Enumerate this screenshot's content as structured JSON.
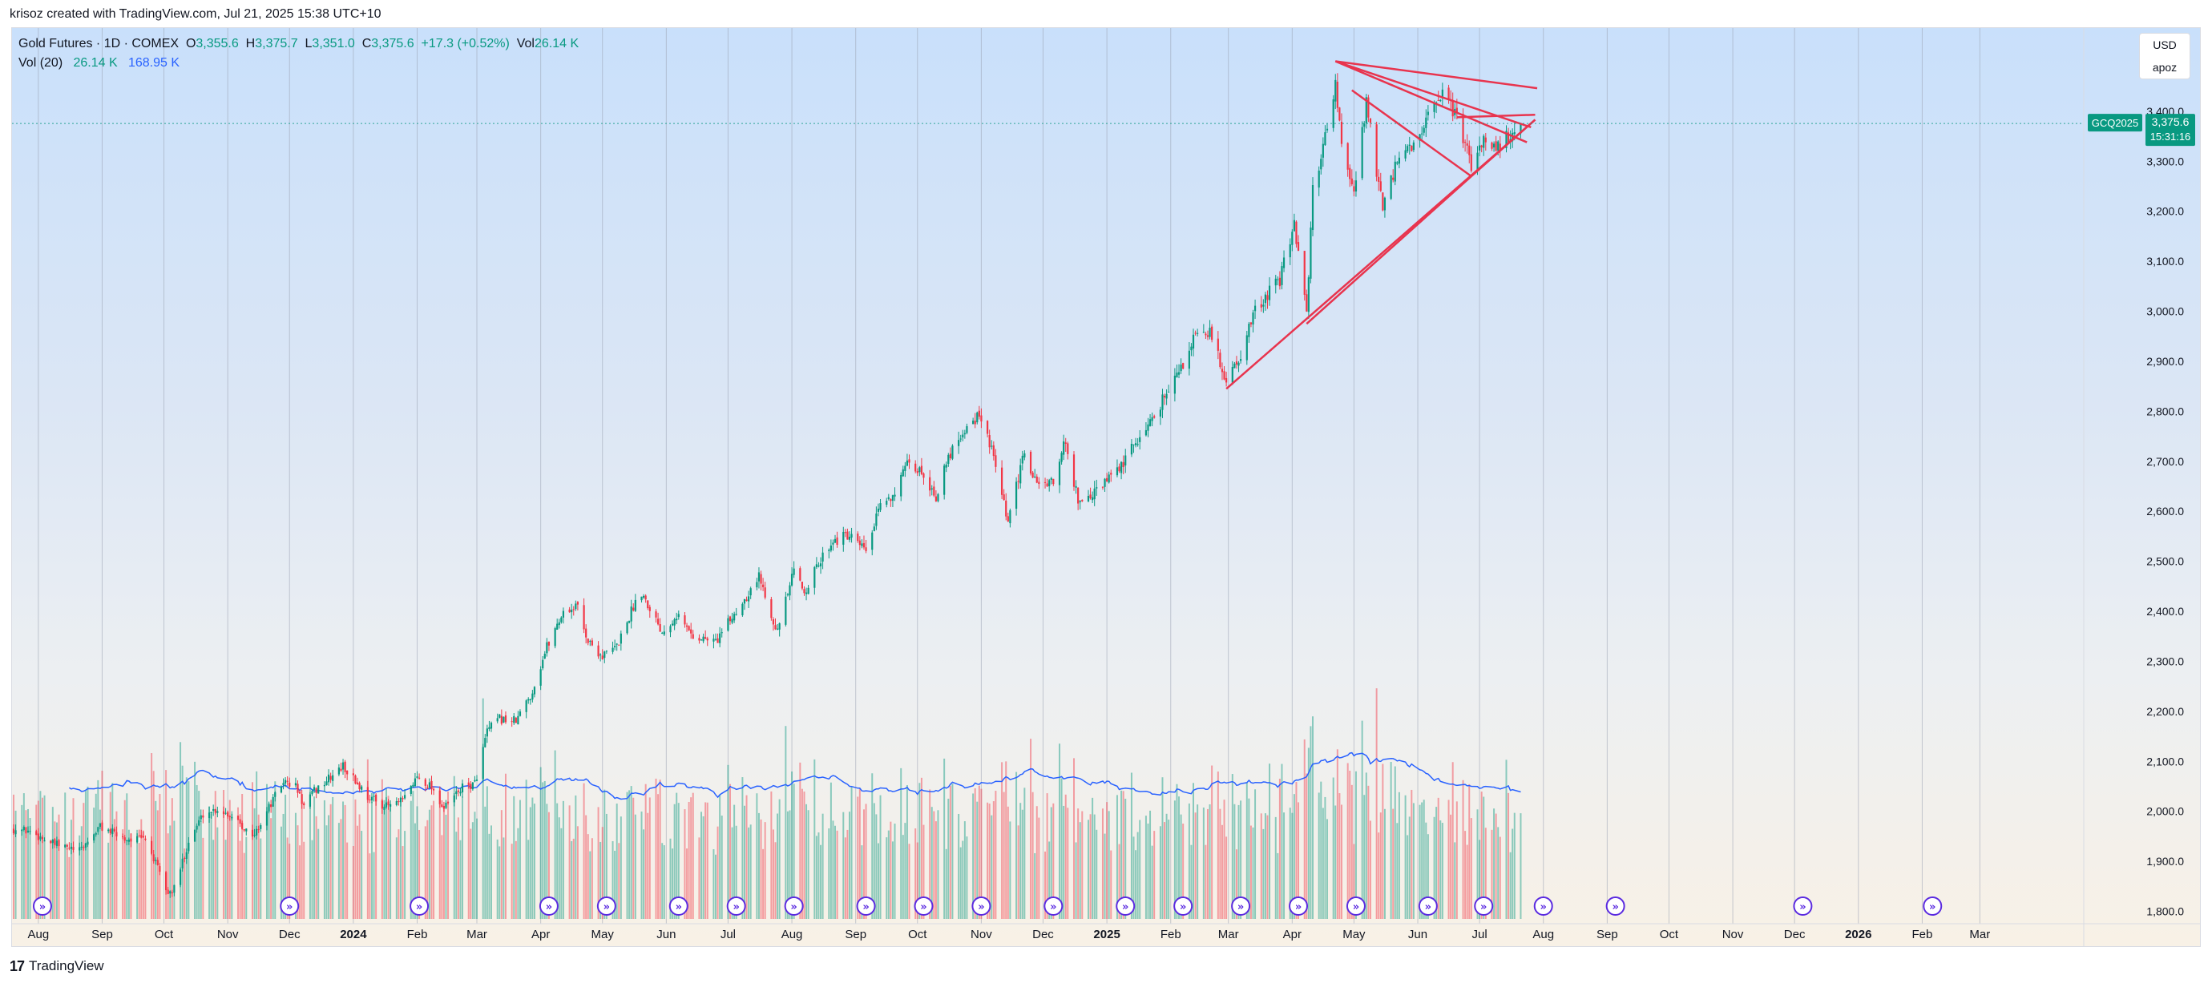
{
  "header": {
    "attribution": "krisoz created with TradingView.com, Jul 21, 2025 15:38 UTC+10"
  },
  "legend": {
    "symbol": "Gold Futures · 1D · COMEX",
    "o_label": "O",
    "o_value": "3,355.6",
    "h_label": "H",
    "h_value": "3,375.7",
    "l_label": "L",
    "l_value": "3,351.0",
    "c_label": "C",
    "c_value": "3,375.6",
    "change": "+17.3 (+0.52%)",
    "vol_label": "Vol",
    "vol_value": "26.14 K",
    "vol_ma_label": "Vol (20)",
    "vol_ma_value1": "26.14 K",
    "vol_ma_value2": "168.95 K"
  },
  "currency_box": {
    "currency": "USD",
    "user": "apoz"
  },
  "price_tag": {
    "ticker": "GCQ2025",
    "price": "3,375.6",
    "countdown": "15:31:16"
  },
  "footer": {
    "brand": "TradingView",
    "logo": "17"
  },
  "colors": {
    "up": "#089981",
    "down": "#f23645",
    "trendline": "#e8344e",
    "volume_ma": "#2962ff",
    "tag": "#089981"
  },
  "chart_data": {
    "type": "candlestick",
    "title": "Gold Futures · 1D · COMEX",
    "price_axis": {
      "ticks": [
        1800,
        1900,
        2000,
        2100,
        2200,
        2300,
        2400,
        2500,
        2600,
        2700,
        2800,
        2900,
        3000,
        3100,
        3200,
        3300,
        3400
      ],
      "tick_labels": [
        "1,800.0",
        "1,900.0",
        "2,000.0",
        "2,100.0",
        "2,200.0",
        "2,300.0",
        "2,400.0",
        "2,500.0",
        "2,600.0",
        "2,700.0",
        "2,800.0",
        "2,900.0",
        "3,000.0",
        "3,100.0",
        "3,200.0",
        "3,300.0",
        "3,400.0"
      ],
      "range": [
        1740,
        3560
      ]
    },
    "time_axis": {
      "labels": [
        "Aug",
        "Sep",
        "Oct",
        "Nov",
        "Dec",
        "2024",
        "Feb",
        "Mar",
        "Apr",
        "May",
        "Jun",
        "Jul",
        "Aug",
        "Sep",
        "Oct",
        "Nov",
        "Dec",
        "2025",
        "Feb",
        "Mar",
        "Apr",
        "May",
        "Jun",
        "Jul",
        "Aug",
        "Sep",
        "Oct",
        "Nov",
        "Dec",
        "2026",
        "Feb",
        "Mar"
      ],
      "bold_labels": [
        "2024",
        "2025",
        "2026"
      ],
      "range": [
        "2023-07-20",
        "2026-03-25"
      ]
    },
    "close_path": [
      [
        "2023-07-20",
        1965
      ],
      [
        "2023-07-28",
        1960
      ],
      [
        "2023-08-08",
        1935
      ],
      [
        "2023-08-21",
        1920
      ],
      [
        "2023-08-31",
        1970
      ],
      [
        "2023-09-12",
        1945
      ],
      [
        "2023-09-22",
        1945
      ],
      [
        "2023-10-03",
        1835
      ],
      [
        "2023-10-06",
        1845
      ],
      [
        "2023-10-13",
        1940
      ],
      [
        "2023-10-20",
        1995
      ],
      [
        "2023-10-27",
        2005
      ],
      [
        "2023-11-06",
        1985
      ],
      [
        "2023-11-13",
        1945
      ],
      [
        "2023-11-20",
        2000
      ],
      [
        "2023-11-28",
        2060
      ],
      [
        "2023-12-04",
        2050
      ],
      [
        "2023-12-08",
        2010
      ],
      [
        "2023-12-13",
        2040
      ],
      [
        "2023-12-27",
        2090
      ],
      [
        "2024-01-08",
        2030
      ],
      [
        "2024-01-17",
        2010
      ],
      [
        "2024-01-25",
        2020
      ],
      [
        "2024-02-01",
        2070
      ],
      [
        "2024-02-08",
        2050
      ],
      [
        "2024-02-14",
        2005
      ],
      [
        "2024-02-22",
        2045
      ],
      [
        "2024-02-29",
        2055
      ],
      [
        "2024-03-06",
        2160
      ],
      [
        "2024-03-12",
        2185
      ],
      [
        "2024-03-20",
        2180
      ],
      [
        "2024-03-28",
        2240
      ],
      [
        "2024-04-04",
        2330
      ],
      [
        "2024-04-12",
        2400
      ],
      [
        "2024-04-19",
        2410
      ],
      [
        "2024-04-24",
        2340
      ],
      [
        "2024-05-01",
        2310
      ],
      [
        "2024-05-08",
        2330
      ],
      [
        "2024-05-17",
        2420
      ],
      [
        "2024-05-20",
        2440
      ],
      [
        "2024-05-30",
        2360
      ],
      [
        "2024-06-06",
        2395
      ],
      [
        "2024-06-14",
        2350
      ],
      [
        "2024-06-25",
        2340
      ],
      [
        "2024-07-05",
        2400
      ],
      [
        "2024-07-16",
        2470
      ],
      [
        "2024-07-25",
        2360
      ],
      [
        "2024-08-02",
        2480
      ],
      [
        "2024-08-07",
        2440
      ],
      [
        "2024-08-20",
        2540
      ],
      [
        "2024-08-28",
        2550
      ],
      [
        "2024-09-06",
        2520
      ],
      [
        "2024-09-13",
        2610
      ],
      [
        "2024-09-20",
        2640
      ],
      [
        "2024-09-26",
        2690
      ],
      [
        "2024-10-03",
        2680
      ],
      [
        "2024-10-10",
        2630
      ],
      [
        "2024-10-18",
        2730
      ],
      [
        "2024-10-23",
        2760
      ],
      [
        "2024-10-30",
        2790
      ],
      [
        "2024-11-05",
        2740
      ],
      [
        "2024-11-14",
        2575
      ],
      [
        "2024-11-22",
        2720
      ],
      [
        "2024-11-27",
        2660
      ],
      [
        "2024-12-06",
        2655
      ],
      [
        "2024-12-11",
        2740
      ],
      [
        "2024-12-19",
        2610
      ],
      [
        "2024-12-27",
        2640
      ],
      [
        "2025-01-08",
        2690
      ],
      [
        "2025-01-17",
        2750
      ],
      [
        "2025-01-24",
        2790
      ],
      [
        "2025-01-31",
        2850
      ],
      [
        "2025-02-07",
        2890
      ],
      [
        "2025-02-11",
        2940
      ],
      [
        "2025-02-20",
        2960
      ],
      [
        "2025-02-28",
        2860
      ],
      [
        "2025-03-07",
        2915
      ],
      [
        "2025-03-14",
        3000
      ],
      [
        "2025-03-21",
        3040
      ],
      [
        "2025-03-26",
        3060
      ],
      [
        "2025-04-02",
        3180
      ],
      [
        "2025-04-08",
        2990
      ],
      [
        "2025-04-11",
        3240
      ],
      [
        "2025-04-17",
        3350
      ],
      [
        "2025-04-22",
        3460
      ],
      [
        "2025-04-25",
        3330
      ],
      [
        "2025-05-01",
        3230
      ],
      [
        "2025-05-07",
        3420
      ],
      [
        "2025-05-15",
        3200
      ],
      [
        "2025-05-22",
        3300
      ],
      [
        "2025-05-30",
        3330
      ],
      [
        "2025-06-05",
        3380
      ],
      [
        "2025-06-13",
        3430
      ],
      [
        "2025-06-20",
        3390
      ],
      [
        "2025-06-27",
        3290
      ],
      [
        "2025-07-03",
        3345
      ],
      [
        "2025-07-10",
        3330
      ],
      [
        "2025-07-15",
        3350
      ],
      [
        "2025-07-18",
        3358
      ],
      [
        "2025-07-21",
        3375.6
      ]
    ],
    "last": {
      "date": "2025-07-21",
      "open": 3355.6,
      "high": 3375.7,
      "low": 3351.0,
      "close": 3375.6,
      "volume": "26.14 K"
    },
    "volume_ma_20": "168.95 K",
    "trendlines": [
      {
        "from": [
          "2025-04-22",
          3500
        ],
        "to": [
          "2025-07-29",
          3446
        ]
      },
      {
        "from": [
          "2025-04-22",
          3500
        ],
        "to": [
          "2025-07-26",
          3368
        ]
      },
      {
        "from": [
          "2025-04-22",
          3500
        ],
        "to": [
          "2025-07-24",
          3338
        ]
      },
      {
        "from": [
          "2025-04-30",
          3442
        ],
        "to": [
          "2025-06-27",
          3270
        ]
      },
      {
        "from": [
          "2025-02-28",
          2845
        ],
        "to": [
          "2025-07-28",
          3383
        ]
      },
      {
        "from": [
          "2025-04-08",
          2975
        ],
        "to": [
          "2025-06-27",
          3270
        ]
      },
      {
        "from": [
          "2025-06-27",
          3270
        ],
        "to": [
          "2025-07-28",
          3383
        ]
      },
      {
        "from": [
          "2025-06-20",
          3388
        ],
        "to": [
          "2025-07-28",
          3393
        ]
      }
    ],
    "event_markers": [
      "2023-08-03",
      "2023-12-01",
      "2024-02-02",
      "2024-04-05",
      "2024-05-03",
      "2024-06-07",
      "2024-07-05",
      "2024-08-02",
      "2024-09-06",
      "2024-10-04",
      "2024-11-01",
      "2024-12-06",
      "2025-01-10",
      "2025-02-07",
      "2025-03-07",
      "2025-04-04",
      "2025-05-02",
      "2025-06-06",
      "2025-07-03",
      "2025-08-01",
      "2025-09-05",
      "2025-12-05",
      "2026-02-06"
    ],
    "grid": true
  }
}
